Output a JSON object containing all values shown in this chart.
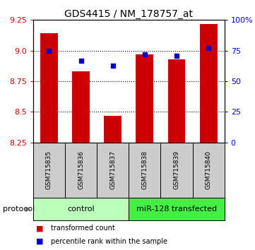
{
  "title": "GDS4415 / NM_178757_at",
  "samples": [
    "GSM715835",
    "GSM715836",
    "GSM715837",
    "GSM715838",
    "GSM715839",
    "GSM715840"
  ],
  "red_values": [
    9.14,
    8.83,
    8.47,
    8.97,
    8.93,
    9.22
  ],
  "blue_values": [
    75,
    67,
    63,
    72,
    71,
    77
  ],
  "ylim_left": [
    8.25,
    9.25
  ],
  "ylim_right": [
    0,
    100
  ],
  "yticks_left": [
    8.25,
    8.5,
    8.75,
    9.0,
    9.25
  ],
  "yticks_right": [
    0,
    25,
    50,
    75,
    100
  ],
  "ytick_labels_right": [
    "0",
    "25",
    "50",
    "75",
    "100%"
  ],
  "bar_color": "#cc0000",
  "dot_color": "#0000cc",
  "control_color": "#bbffbb",
  "transfected_color": "#44ee44",
  "sample_bg": "#cccccc",
  "control_label": "control",
  "transfected_label": "miR-128 transfected",
  "protocol_label": "protocol",
  "legend_red": "transformed count",
  "legend_blue": "percentile rank within the sample",
  "title_fontsize": 10,
  "axis_color_left": "#cc0000",
  "axis_color_right": "#0000cc",
  "bar_bottom": 8.25,
  "bar_width": 0.55,
  "dotted_lines": [
    9.0,
    8.75,
    8.5
  ],
  "fig_width": 3.61,
  "fig_height": 3.54,
  "fig_dpi": 100
}
